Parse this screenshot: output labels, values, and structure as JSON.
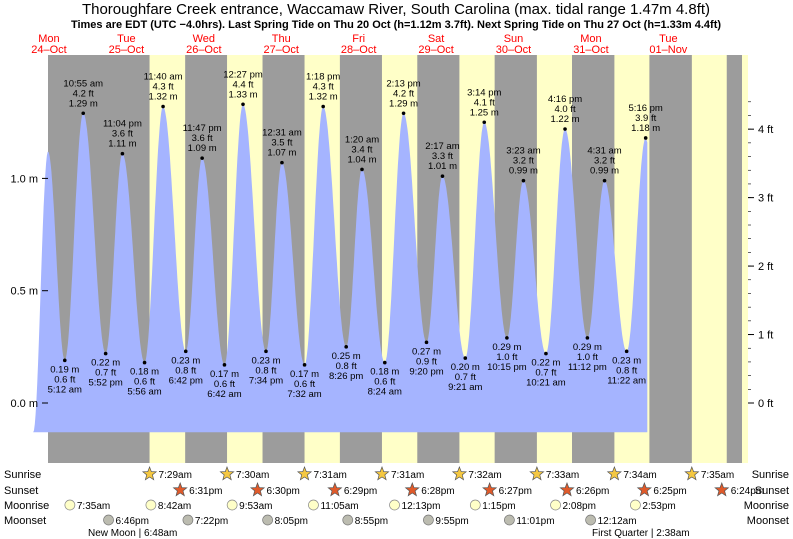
{
  "chart_data": {
    "type": "area",
    "title": "Thoroughfare Creek entrance, Waccamaw River, South Carolina (max. tidal range 1.47m 4.8ft)",
    "subtitle": "Times are EDT (UTC −4.0hrs). Last Spring Tide on Thu 20 Oct (h=1.12m 3.7ft). Next Spring Tide on Thu 27 Oct (h=1.33m 4.4ft)",
    "ylabel_left": "m",
    "ylabel_right": "ft",
    "ylim_m": [
      -0.15,
      1.52
    ],
    "xlim_hours": [
      0,
      204
    ],
    "left_ticks": [
      {
        "v": 0.0,
        "label": "0.0 m"
      },
      {
        "v": 0.5,
        "label": "0.5 m"
      },
      {
        "v": 1.0,
        "label": "1.0 m"
      }
    ],
    "right_ticks": [
      {
        "v": 0,
        "label": "0 ft"
      },
      {
        "v": 1,
        "label": "1 ft"
      },
      {
        "v": 2,
        "label": "2 ft"
      },
      {
        "v": 3,
        "label": "3 ft"
      },
      {
        "v": 4,
        "label": "4 ft"
      }
    ],
    "days": [
      {
        "dow": "Mon",
        "date": "24–Oct"
      },
      {
        "dow": "Tue",
        "date": "25–Oct"
      },
      {
        "dow": "Wed",
        "date": "26–Oct"
      },
      {
        "dow": "Thu",
        "date": "27–Oct"
      },
      {
        "dow": "Fri",
        "date": "28–Oct"
      },
      {
        "dow": "Sat",
        "date": "29–Oct"
      },
      {
        "dow": "Sun",
        "date": "30–Oct"
      },
      {
        "dow": "Mon",
        "date": "31–Oct"
      },
      {
        "dow": "Tue",
        "date": "01–Nov"
      }
    ],
    "tides": [
      {
        "type": "high",
        "t": 0.0,
        "m": 1.12
      },
      {
        "type": "low",
        "t": 5.2,
        "m": 0.19,
        "time": "5:12 am",
        "ft": "0.6 ft",
        "mlabel": "0.19 m"
      },
      {
        "type": "high",
        "t": 10.92,
        "m": 1.29,
        "time": "10:55 am",
        "ft": "4.2 ft",
        "mlabel": "1.29 m"
      },
      {
        "type": "low",
        "t": 17.87,
        "m": 0.22,
        "time": "5:52 pm",
        "ft": "0.7 ft",
        "mlabel": "0.22 m"
      },
      {
        "type": "high",
        "t": 23.07,
        "m": 1.11,
        "time": "11:04 pm",
        "ft": "3.6 ft",
        "mlabel": "1.11 m"
      },
      {
        "type": "low",
        "t": 29.93,
        "m": 0.18,
        "time": "5:56 am",
        "ft": "0.6 ft",
        "mlabel": "0.18 m"
      },
      {
        "type": "high",
        "t": 35.67,
        "m": 1.32,
        "time": "11:40 am",
        "ft": "4.3 ft",
        "mlabel": "1.32 m"
      },
      {
        "type": "low",
        "t": 42.7,
        "m": 0.23,
        "time": "6:42 pm",
        "ft": "0.8 ft",
        "mlabel": "0.23 m"
      },
      {
        "type": "high",
        "t": 47.78,
        "m": 1.09,
        "time": "11:47 pm",
        "ft": "3.6 ft",
        "mlabel": "1.09 m"
      },
      {
        "type": "low",
        "t": 54.7,
        "m": 0.17,
        "time": "6:42 am",
        "ft": "0.6 ft",
        "mlabel": "0.17 m"
      },
      {
        "type": "high",
        "t": 60.45,
        "m": 1.33,
        "time": "12:27 pm",
        "ft": "4.4 ft",
        "mlabel": "1.33 m"
      },
      {
        "type": "low",
        "t": 67.57,
        "m": 0.23,
        "time": "7:34 pm",
        "ft": "0.8 ft",
        "mlabel": "0.23 m"
      },
      {
        "type": "high",
        "t": 72.52,
        "m": 1.07,
        "time": "12:31 am",
        "ft": "3.5 ft",
        "mlabel": "1.07 m"
      },
      {
        "type": "low",
        "t": 79.53,
        "m": 0.17,
        "time": "7:32 am",
        "ft": "0.6 ft",
        "mlabel": "0.17 m"
      },
      {
        "type": "high",
        "t": 85.3,
        "m": 1.32,
        "time": "1:18 pm",
        "ft": "4.3 ft",
        "mlabel": "1.32 m"
      },
      {
        "type": "low",
        "t": 92.43,
        "m": 0.25,
        "time": "8:26 pm",
        "ft": "0.8 ft",
        "mlabel": "0.25 m"
      },
      {
        "type": "high",
        "t": 97.33,
        "m": 1.04,
        "time": "1:20 am",
        "ft": "3.4 ft",
        "mlabel": "1.04 m"
      },
      {
        "type": "low",
        "t": 104.4,
        "m": 0.18,
        "time": "8:24 am",
        "ft": "0.6 ft",
        "mlabel": "0.18 m"
      },
      {
        "type": "high",
        "t": 110.22,
        "m": 1.29,
        "time": "2:13 pm",
        "ft": "4.2 ft",
        "mlabel": "1.29 m"
      },
      {
        "type": "low",
        "t": 117.33,
        "m": 0.27,
        "time": "9:20 pm",
        "ft": "0.9 ft",
        "mlabel": "0.27 m"
      },
      {
        "type": "high",
        "t": 122.28,
        "m": 1.01,
        "time": "2:17 am",
        "ft": "3.3 ft",
        "mlabel": "1.01 m"
      },
      {
        "type": "low",
        "t": 129.35,
        "m": 0.2,
        "time": "9:21 am",
        "ft": "0.7 ft",
        "mlabel": "0.20 m"
      },
      {
        "type": "high",
        "t": 135.23,
        "m": 1.25,
        "time": "3:14 pm",
        "ft": "4.1 ft",
        "mlabel": "1.25 m"
      },
      {
        "type": "low",
        "t": 142.25,
        "m": 0.29,
        "time": "10:15 pm",
        "ft": "1.0 ft",
        "mlabel": "0.29 m"
      },
      {
        "type": "high",
        "t": 147.38,
        "m": 0.99,
        "time": "3:23 am",
        "ft": "3.2 ft",
        "mlabel": "0.99 m"
      },
      {
        "type": "low",
        "t": 154.35,
        "m": 0.22,
        "time": "10:21 am",
        "ft": "0.7 ft",
        "mlabel": "0.22 m"
      },
      {
        "type": "high",
        "t": 160.27,
        "m": 1.22,
        "time": "4:16 pm",
        "ft": "4.0 ft",
        "mlabel": "1.22 m"
      },
      {
        "type": "low",
        "t": 167.2,
        "m": 0.29,
        "time": "11:12 pm",
        "ft": "1.0 ft",
        "mlabel": "0.29 m"
      },
      {
        "type": "high",
        "t": 172.52,
        "m": 0.99,
        "time": "4:31 am",
        "ft": "3.2 ft",
        "mlabel": "0.99 m"
      },
      {
        "type": "low",
        "t": 179.37,
        "m": 0.23,
        "time": "11:22 am",
        "ft": "0.8 ft",
        "mlabel": "0.23 m"
      },
      {
        "type": "high",
        "t": 185.27,
        "m": 1.18,
        "time": "5:16 pm",
        "ft": "3.9 ft",
        "mlabel": "1.18 m"
      }
    ],
    "daylight": [
      {
        "sunrise": 31.48,
        "sunset": 42.52
      },
      {
        "sunrise": 55.5,
        "sunset": 66.5
      },
      {
        "sunrise": 79.52,
        "sunset": 90.48
      },
      {
        "sunrise": 103.52,
        "sunset": 114.47
      },
      {
        "sunrise": 127.53,
        "sunset": 138.45
      },
      {
        "sunrise": 151.55,
        "sunset": 162.43
      },
      {
        "sunrise": 175.57,
        "sunset": 186.42
      },
      {
        "sunrise": 199.58,
        "sunset": 210.4
      }
    ],
    "rows": [
      "Sunrise",
      "Sunset",
      "Moonrise",
      "Moonset"
    ],
    "sunrise_times": [
      "7:29am",
      "7:30am",
      "7:31am",
      "7:31am",
      "7:32am",
      "7:33am",
      "7:34am",
      "7:35am"
    ],
    "sunset_times": [
      "6:31pm",
      "6:30pm",
      "6:29pm",
      "6:28pm",
      "6:27pm",
      "6:26pm",
      "6:25pm",
      "6:24pm"
    ],
    "moonrise_times": [
      "7:35am",
      "8:42am",
      "9:53am",
      "11:05am",
      "12:13pm",
      "1:15pm",
      "2:08pm",
      "2:53pm"
    ],
    "moonset_times": [
      "6:46pm",
      "7:22pm",
      "8:05pm",
      "8:55pm",
      "9:55pm",
      "11:01pm",
      "12:12am"
    ],
    "phase_left": "New Moon | 6:48am",
    "phase_right": "First Quarter | 2:38am"
  },
  "colors": {
    "night": "#9c9c9c",
    "day": "#ffffc8",
    "water": "#a5b4ff",
    "title": "#000000",
    "dates": "#ff0000",
    "sun": "#f5c842",
    "sunset": "#e05a2a",
    "moonrise": "#ffffc8",
    "moonset": "#bcbcb0"
  }
}
